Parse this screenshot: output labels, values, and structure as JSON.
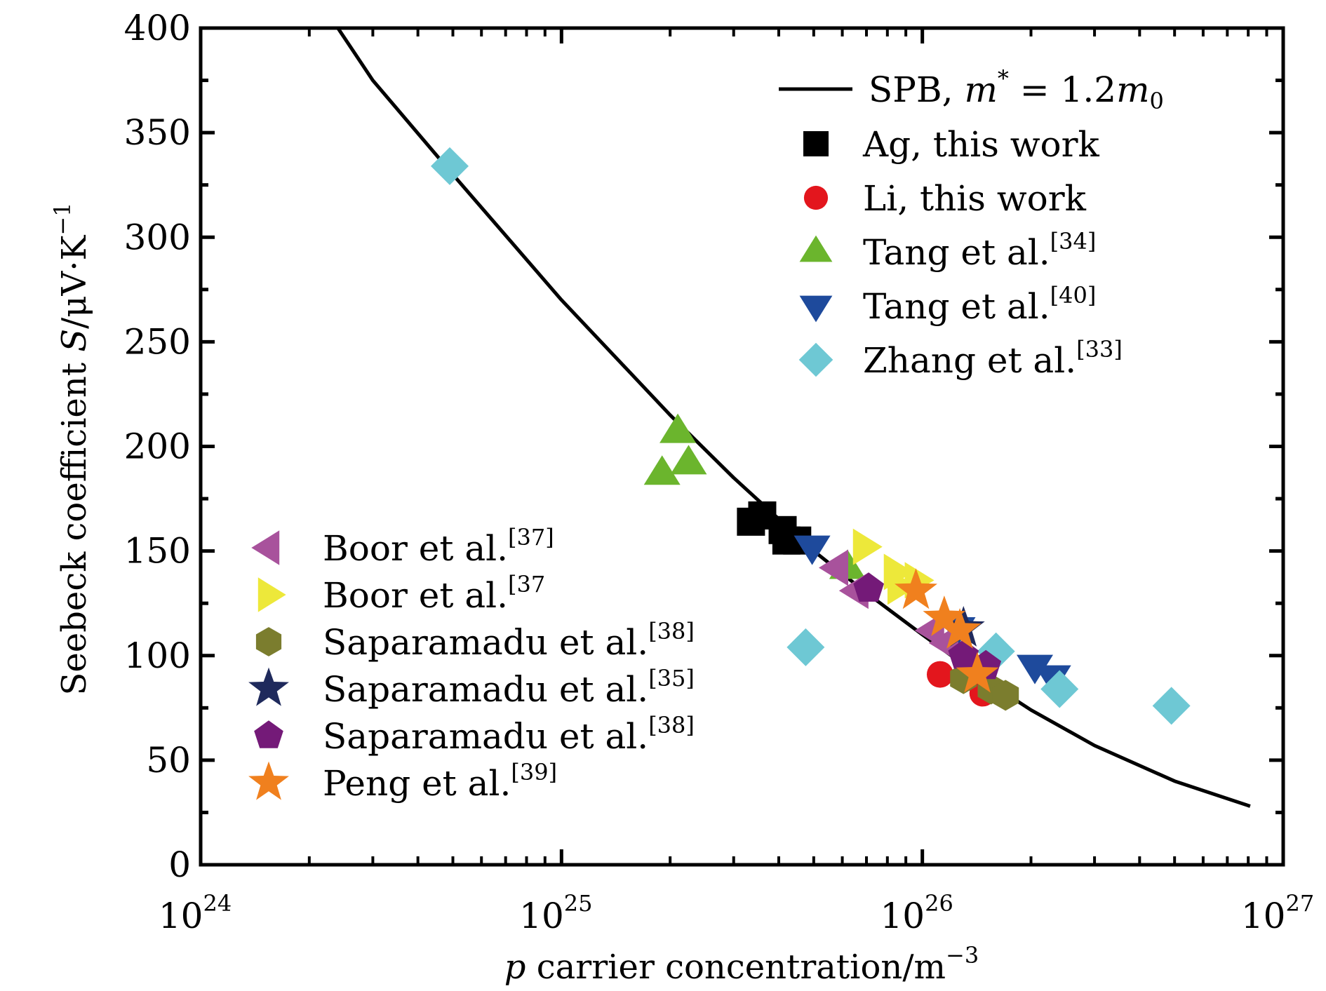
{
  "chart_data": {
    "type": "scatter",
    "title": "",
    "xlabel": "p carrier concentration/m^-3",
    "xlabel_parts": {
      "var": "p",
      "text": " carrier concentration/m",
      "sup": "−3"
    },
    "ylabel": "Seebeck coefficient S/μV·K^-1",
    "ylabel_parts": {
      "text": "Seebeck coefficient ",
      "var": "S",
      "unit": "/μV·K",
      "sup": "−1"
    },
    "xscale": "log",
    "xlim": [
      1e+24,
      1e+27
    ],
    "ylim": [
      0,
      400
    ],
    "x_ticks": [
      {
        "value": 1e+24,
        "base": "10",
        "exp": "24"
      },
      {
        "value": 1e+25,
        "base": "10",
        "exp": "25"
      },
      {
        "value": 1e+26,
        "base": "10",
        "exp": "26"
      },
      {
        "value": 1e+27,
        "base": "10",
        "exp": "27"
      }
    ],
    "y_ticks": [
      0,
      50,
      100,
      150,
      200,
      250,
      300,
      350,
      400
    ],
    "grid": false,
    "legend_placement": [
      "top-right",
      "bottom-left"
    ],
    "curve": {
      "name": "SPB, m* = 1.2m0",
      "label_parts": {
        "text": "SPB, ",
        "var": "m",
        "star": "*",
        "eq": " = 1.2",
        "var2": "m",
        "sub": "0"
      },
      "color": "#000000",
      "x": [
        2.4e+24,
        3e+24,
        5e+24,
        1e+25,
        2e+25,
        3e+25,
        5e+25,
        7e+25,
        1e+26,
        1.5e+26,
        2e+26,
        3e+26,
        5e+26,
        8.1e+26
      ],
      "y": [
        400,
        375,
        330,
        270,
        215,
        185,
        150,
        130,
        110,
        88,
        74,
        57,
        40,
        28
      ]
    },
    "series": [
      {
        "name": "Ag, this work",
        "ref": "",
        "marker": "square",
        "color": "#000000",
        "legend": "top",
        "points": [
          [
            3.35e+25,
            164
          ],
          [
            3.6e+25,
            167
          ],
          [
            4.1e+25,
            160
          ],
          [
            4.2e+25,
            155
          ],
          [
            4.5e+25,
            155
          ]
        ]
      },
      {
        "name": "Li, this work",
        "ref": "",
        "marker": "circle",
        "color": "#e3161d",
        "legend": "top",
        "points": [
          [
            1.12e+26,
            91
          ],
          [
            1.47e+26,
            82
          ]
        ]
      },
      {
        "name": "Tang et al.",
        "ref": "[34]",
        "marker": "triangle-up",
        "color": "#6bb52d",
        "legend": "top",
        "points": [
          [
            2.1e+25,
            207
          ],
          [
            1.9e+25,
            187
          ],
          [
            2.25e+25,
            192
          ],
          [
            6.2e+25,
            142
          ]
        ]
      },
      {
        "name": "Tang et al.",
        "ref": "[40]",
        "marker": "triangle-down",
        "color": "#1e4a9c",
        "legend": "top",
        "points": [
          [
            4.95e+25,
            152
          ],
          [
            1.25e+26,
            113
          ],
          [
            2.05e+26,
            95
          ],
          [
            2.3e+26,
            90
          ]
        ]
      },
      {
        "name": "Zhang et al.",
        "ref": "[33]",
        "marker": "diamond",
        "color": "#6ec8d4",
        "legend": "top",
        "points": [
          [
            4.9e+24,
            334
          ],
          [
            4.75e+25,
            104
          ],
          [
            1.6e+26,
            102
          ],
          [
            2.4e+26,
            84
          ],
          [
            4.9e+26,
            76
          ]
        ]
      },
      {
        "name": "Boor et al.",
        "ref": "[37]",
        "marker": "triangle-left",
        "color": "#a8529c",
        "legend": "bottom",
        "points": [
          [
            5.8e+25,
            142
          ],
          [
            6.6e+25,
            131
          ],
          [
            1.07e+26,
            112
          ],
          [
            1.17e+26,
            106
          ]
        ]
      },
      {
        "name": "Boor et al.",
        "ref": "[37",
        "marker": "triangle-right",
        "color": "#ede83a",
        "legend": "bottom",
        "points": [
          [
            6.9e+25,
            152
          ],
          [
            8.4e+25,
            140
          ],
          [
            8.6e+25,
            133
          ],
          [
            9.6e+25,
            136
          ]
        ]
      },
      {
        "name": "Saparamadu et al.",
        "ref": "[38]",
        "marker": "hexagon",
        "color": "#7b7d2e",
        "legend": "bottom",
        "points": [
          [
            1.3e+26,
            89
          ],
          [
            1.55e+26,
            84
          ],
          [
            1.7e+26,
            81
          ]
        ]
      },
      {
        "name": "Saparamadu et al.",
        "ref": "[35]",
        "marker": "star",
        "color": "#1f2a5c",
        "legend": "bottom",
        "points": [
          [
            1.3e+26,
            113
          ]
        ]
      },
      {
        "name": "Saparamadu et al.",
        "ref": "[38]",
        "marker": "pentagon",
        "color": "#741a78",
        "legend": "bottom",
        "points": [
          [
            7.1e+25,
            132
          ],
          [
            1.3e+26,
            100
          ],
          [
            1.5e+26,
            95
          ]
        ]
      },
      {
        "name": "Peng et al.",
        "ref": "[39]",
        "marker": "star",
        "color": "#f0801e",
        "legend": "bottom",
        "points": [
          [
            9.6e+25,
            131
          ],
          [
            1.15e+26,
            118
          ],
          [
            1.27e+26,
            112
          ],
          [
            1.42e+26,
            91
          ]
        ]
      }
    ]
  }
}
